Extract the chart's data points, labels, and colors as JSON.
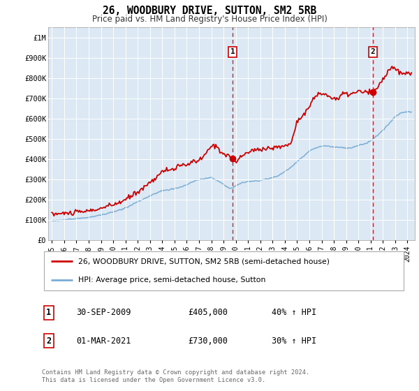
{
  "title": "26, WOODBURY DRIVE, SUTTON, SM2 5RB",
  "subtitle": "Price paid vs. HM Land Registry's House Price Index (HPI)",
  "legend_line1": "26, WOODBURY DRIVE, SUTTON, SM2 5RB (semi-detached house)",
  "legend_line2": "HPI: Average price, semi-detached house, Sutton",
  "red_color": "#cc0000",
  "blue_color": "#7aadd4",
  "background_color": "#ffffff",
  "plot_bg_color": "#dce9f5",
  "grid_color": "#ffffff",
  "ylim": [
    0,
    1050000
  ],
  "xlim_start": 1994.7,
  "xlim_end": 2024.6,
  "marker1_x": 2009.75,
  "marker1_y": 405000,
  "marker2_x": 2021.17,
  "marker2_y": 730000,
  "marker1_date": "30-SEP-2009",
  "marker1_price": "£405,000",
  "marker1_hpi": "40% ↑ HPI",
  "marker2_date": "01-MAR-2021",
  "marker2_price": "£730,000",
  "marker2_hpi": "30% ↑ HPI",
  "footer": "Contains HM Land Registry data © Crown copyright and database right 2024.\nThis data is licensed under the Open Government Licence v3.0."
}
